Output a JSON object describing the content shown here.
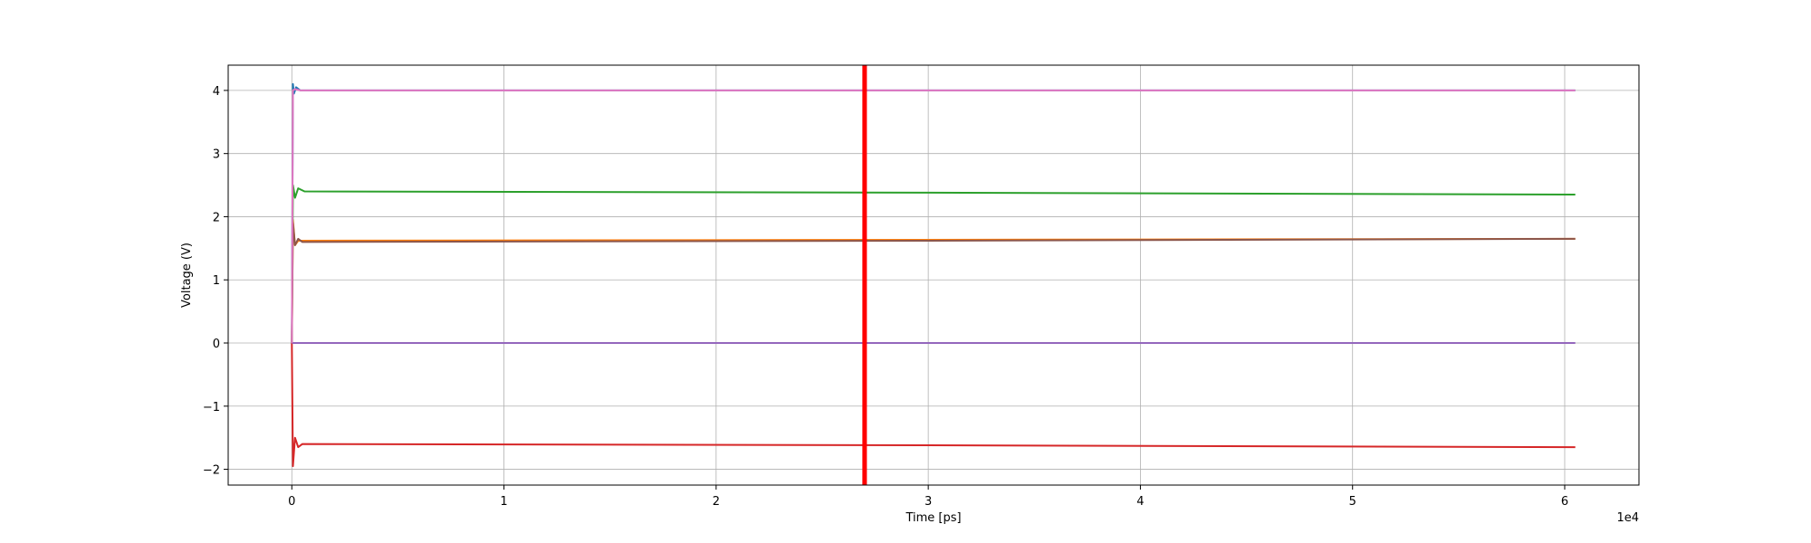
{
  "chart_data": {
    "type": "line",
    "xlabel": "Time [ps]",
    "ylabel": "Voltage (V)",
    "x_offset_text": "1e4",
    "xlim": [
      -0.3,
      6.35
    ],
    "ylim": [
      -2.25,
      4.4
    ],
    "x_ticks": [
      0,
      1,
      2,
      3,
      4,
      5,
      6
    ],
    "x_tick_labels": [
      "0",
      "1",
      "2",
      "3",
      "4",
      "5",
      "6"
    ],
    "y_ticks": [
      -2,
      -1,
      0,
      1,
      2,
      3,
      4
    ],
    "y_tick_labels": [
      "−2",
      "−1",
      "0",
      "1",
      "2",
      "3",
      "4"
    ],
    "grid": true,
    "legend": "none",
    "marker": {
      "x": 2.7,
      "color": "#ff0000"
    },
    "series": [
      {
        "color": "#1f77b4",
        "x": [
          0,
          0.005,
          0.01,
          0.02,
          0.04,
          6.05
        ],
        "y": [
          0,
          4.1,
          3.95,
          4.05,
          4.0,
          4.0
        ]
      },
      {
        "color": "#ff7f0e",
        "x": [
          0,
          0.005,
          0.015,
          0.03,
          6.05
        ],
        "y": [
          0,
          1.95,
          1.55,
          1.62,
          1.65
        ]
      },
      {
        "color": "#2ca02c",
        "x": [
          0,
          0.005,
          0.015,
          0.03,
          0.06,
          3.0,
          6.05
        ],
        "y": [
          0,
          2.5,
          2.3,
          2.45,
          2.4,
          2.38,
          2.35
        ]
      },
      {
        "color": "#d62728",
        "x": [
          0,
          0.005,
          0.015,
          0.03,
          0.05,
          3.0,
          6.05
        ],
        "y": [
          0,
          -1.95,
          -1.5,
          -1.65,
          -1.6,
          -1.62,
          -1.65
        ]
      },
      {
        "color": "#9467bd",
        "x": [
          0,
          6.05
        ],
        "y": [
          0,
          0
        ]
      },
      {
        "color": "#8c564b",
        "x": [
          0,
          0.005,
          0.015,
          0.03,
          0.05,
          3.0,
          6.05
        ],
        "y": [
          0,
          1.9,
          1.55,
          1.65,
          1.6,
          1.62,
          1.65
        ]
      },
      {
        "color": "#e377c2",
        "x": [
          0,
          0.005,
          0.015,
          0.04,
          6.05
        ],
        "y": [
          0,
          4.0,
          4.02,
          4.0,
          4.0
        ]
      }
    ]
  }
}
